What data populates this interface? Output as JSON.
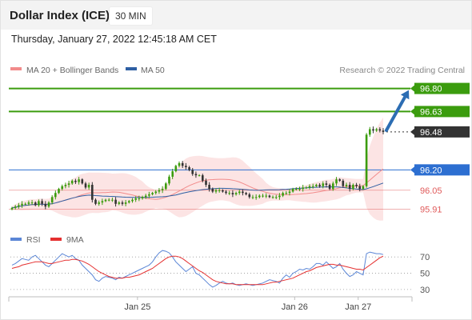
{
  "header": {
    "title": "Dollar Index (ICE)",
    "interval": "30 MIN"
  },
  "timestamp": "Thursday, January 27, 2022 12:45:18 AM CET",
  "colors": {
    "bollinger": "#f28b8b",
    "ma50": "#2e5fa3",
    "green_level": "#3b9c0e",
    "blue_level": "#2d6fd1",
    "red_level": "#e05a5a",
    "current": "#333333",
    "arrow": "#2c6db3",
    "rsi": "#5b86d6",
    "rsi_ma": "#e53030",
    "bull_candle": "#3b9c0e",
    "bear_candle": "#333333"
  },
  "chart_data": [
    {
      "type": "candlestick",
      "title": "",
      "legend": [
        {
          "label": "MA 20 + Bollinger Bands",
          "color": "#f28b8b"
        },
        {
          "label": "MA 50",
          "color": "#2e5fa3"
        }
      ],
      "legend_position": "top-left",
      "credit": "Research © 2022 Trading Central",
      "x_ticks": [
        "Jan 25",
        "Jan 26",
        "Jan 27"
      ],
      "ylim": [
        95.76,
        96.88
      ],
      "bars": 112,
      "close": [
        95.92,
        95.93,
        95.94,
        95.95,
        95.95,
        95.96,
        95.96,
        95.94,
        95.97,
        95.95,
        95.93,
        95.96,
        96.0,
        96.03,
        96.06,
        96.08,
        96.09,
        96.1,
        96.12,
        96.11,
        96.13,
        96.1,
        96.07,
        96.09,
        95.98,
        95.95,
        95.96,
        95.97,
        95.98,
        95.98,
        95.98,
        95.95,
        95.96,
        95.95,
        95.96,
        95.97,
        95.98,
        95.99,
        95.99,
        96.0,
        96.01,
        96.02,
        96.03,
        96.04,
        96.05,
        96.06,
        96.1,
        96.15,
        96.19,
        96.23,
        96.25,
        96.23,
        96.22,
        96.2,
        96.17,
        96.16,
        96.16,
        96.12,
        96.09,
        96.06,
        96.04,
        96.05,
        96.05,
        96.04,
        96.03,
        96.03,
        96.02,
        96.03,
        96.04,
        96.03,
        96.02,
        96.0,
        96.0,
        96.0,
        96.01,
        96.01,
        96.01,
        96.0,
        96.0,
        96.0,
        96.01,
        96.03,
        96.03,
        96.04,
        96.06,
        96.06,
        96.06,
        96.07,
        96.07,
        96.08,
        96.08,
        96.09,
        96.08,
        96.1,
        96.09,
        96.06,
        96.1,
        96.13,
        96.12,
        96.08,
        96.09,
        96.06,
        96.09,
        96.08,
        96.06,
        96.08,
        96.46,
        96.5,
        96.49,
        96.5,
        96.49,
        96.48
      ],
      "levels": [
        {
          "value": 96.8,
          "label": "96.80",
          "kind": "resistance"
        },
        {
          "value": 96.63,
          "label": "96.63",
          "kind": "resistance"
        },
        {
          "value": 96.48,
          "label": "96.48",
          "kind": "current"
        },
        {
          "value": 96.2,
          "label": "96.20",
          "kind": "pivot"
        },
        {
          "value": 96.05,
          "label": "96.05",
          "kind": "support"
        },
        {
          "value": 95.91,
          "label": "95.91",
          "kind": "support"
        }
      ],
      "arrow": {
        "from": 96.48,
        "to": 96.8,
        "direction": "up"
      }
    },
    {
      "type": "line",
      "legend": [
        {
          "label": "RSI",
          "color": "#5b86d6"
        },
        {
          "label": "9MA",
          "color": "#e53030"
        }
      ],
      "ylim": [
        25,
        82
      ],
      "y_ticks": [
        70,
        50,
        30
      ],
      "series": [
        {
          "name": "RSI",
          "values": [
            60,
            62,
            65,
            68,
            67,
            66,
            70,
            72,
            68,
            64,
            60,
            58,
            62,
            66,
            70,
            74,
            72,
            70,
            72,
            68,
            66,
            60,
            56,
            52,
            48,
            42,
            40,
            44,
            46,
            45,
            44,
            42,
            45,
            44,
            46,
            48,
            50,
            52,
            54,
            56,
            58,
            60,
            64,
            70,
            75,
            78,
            77,
            75,
            70,
            64,
            60,
            56,
            52,
            55,
            58,
            50,
            48,
            44,
            40,
            36,
            33,
            35,
            38,
            40,
            38,
            37,
            38,
            36,
            35,
            36,
            37,
            36,
            35,
            36,
            37,
            38,
            40,
            42,
            41,
            40,
            38,
            44,
            48,
            45,
            50,
            52,
            55,
            54,
            56,
            55,
            58,
            62,
            62,
            60,
            64,
            60,
            56,
            58,
            62,
            55,
            50,
            46,
            48,
            52,
            50,
            48,
            74,
            76,
            75,
            74,
            74,
            73
          ]
        },
        {
          "name": "9MA",
          "values": [
            56,
            57,
            58,
            60,
            61,
            62,
            63,
            64,
            64,
            64,
            63,
            62,
            62,
            63,
            64,
            65,
            66,
            66,
            67,
            67,
            66,
            65,
            63,
            61,
            58,
            55,
            52,
            50,
            48,
            46,
            45,
            44,
            44,
            44,
            45,
            45,
            46,
            47,
            48,
            50,
            52,
            54,
            56,
            59,
            62,
            65,
            68,
            70,
            71,
            71,
            70,
            68,
            65,
            62,
            59,
            56,
            53,
            51,
            48,
            45,
            42,
            40,
            39,
            38,
            37,
            37,
            37,
            36,
            36,
            36,
            36,
            36,
            36,
            36,
            36,
            36,
            37,
            38,
            39,
            39,
            40,
            41,
            42,
            43,
            44,
            46,
            48,
            50,
            52,
            53,
            55,
            57,
            58,
            59,
            60,
            61,
            61,
            60,
            60,
            59,
            58,
            57,
            56,
            55,
            55,
            54,
            57,
            60,
            63,
            66,
            69,
            71
          ]
        }
      ]
    }
  ]
}
